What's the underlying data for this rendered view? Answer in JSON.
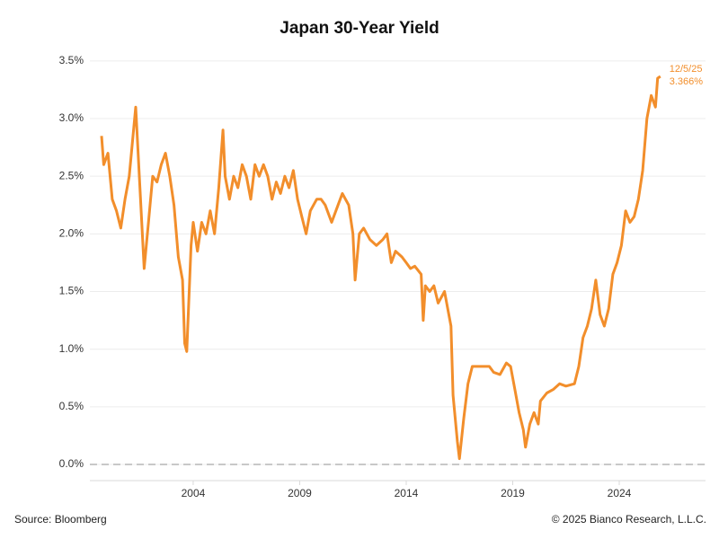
{
  "chart_data": {
    "type": "line",
    "title": "Japan 30-Year Yield",
    "source": "Source: Bloomberg",
    "copyright": "© 2025 Bianco Research, L.L.C.",
    "xlim": [
      1999.15,
      2028.05
    ],
    "xticks": [
      2004,
      2009,
      2014,
      2019,
      2024
    ],
    "ylim": [
      -0.14,
      3.6
    ],
    "yticks": [
      {
        "value": 0,
        "label": "0.0%"
      },
      {
        "value": 0.5,
        "label": "0.5%"
      },
      {
        "value": 1,
        "label": "1.0%"
      },
      {
        "value": 1.5,
        "label": "1.5%"
      },
      {
        "value": 2,
        "label": "2.0%"
      },
      {
        "value": 2.5,
        "label": "2.5%"
      },
      {
        "value": 3,
        "label": "3.0%"
      },
      {
        "value": 3.5,
        "label": "3.5%"
      }
    ],
    "grid": true,
    "zero_line": 0,
    "end_label": {
      "date": "12/5/25",
      "value": 3.366,
      "label": "3.366%"
    },
    "series": [
      {
        "color": "#f28e2b",
        "x": [
          1999.7,
          1999.8,
          2000.0,
          2000.2,
          2000.4,
          2000.6,
          2000.8,
          2001.0,
          2001.2,
          2001.3,
          2001.5,
          2001.7,
          2001.9,
          2002.1,
          2002.3,
          2002.5,
          2002.7,
          2002.9,
          2003.1,
          2003.3,
          2003.5,
          2003.6,
          2003.7,
          2003.9,
          2004.0,
          2004.2,
          2004.4,
          2004.6,
          2004.8,
          2005.0,
          2005.2,
          2005.4,
          2005.5,
          2005.7,
          2005.9,
          2006.1,
          2006.3,
          2006.5,
          2006.7,
          2006.9,
          2007.1,
          2007.3,
          2007.5,
          2007.7,
          2007.9,
          2008.1,
          2008.3,
          2008.5,
          2008.7,
          2008.9,
          2009.1,
          2009.3,
          2009.5,
          2009.8,
          2010.0,
          2010.2,
          2010.5,
          2010.8,
          2011.0,
          2011.3,
          2011.5,
          2011.6,
          2011.8,
          2012.0,
          2012.3,
          2012.6,
          2012.9,
          2013.1,
          2013.3,
          2013.5,
          2013.8,
          2014.0,
          2014.2,
          2014.4,
          2014.7,
          2014.8,
          2014.9,
          2015.1,
          2015.3,
          2015.5,
          2015.8,
          2016.0,
          2016.1,
          2016.2,
          2016.4,
          2016.5,
          2016.7,
          2016.9,
          2017.1,
          2017.3,
          2017.6,
          2017.9,
          2018.1,
          2018.4,
          2018.7,
          2018.9,
          2019.1,
          2019.3,
          2019.5,
          2019.6,
          2019.8,
          2020.0,
          2020.2,
          2020.3,
          2020.6,
          2020.9,
          2021.2,
          2021.5,
          2021.9,
          2022.1,
          2022.3,
          2022.5,
          2022.7,
          2022.9,
          2023.1,
          2023.3,
          2023.5,
          2023.7,
          2023.9,
          2024.1,
          2024.3,
          2024.5,
          2024.7,
          2024.9,
          2025.1,
          2025.3,
          2025.5,
          2025.7,
          2025.8,
          2025.93
        ],
        "values": [
          2.85,
          2.6,
          2.7,
          2.3,
          2.2,
          2.05,
          2.3,
          2.5,
          2.9,
          3.1,
          2.4,
          1.7,
          2.1,
          2.5,
          2.45,
          2.6,
          2.7,
          2.5,
          2.25,
          1.8,
          1.6,
          1.05,
          0.98,
          1.9,
          2.1,
          1.85,
          2.1,
          2.0,
          2.2,
          2.0,
          2.4,
          2.9,
          2.5,
          2.3,
          2.5,
          2.4,
          2.6,
          2.5,
          2.3,
          2.6,
          2.5,
          2.6,
          2.5,
          2.3,
          2.45,
          2.35,
          2.5,
          2.4,
          2.55,
          2.3,
          2.15,
          2.0,
          2.2,
          2.3,
          2.3,
          2.25,
          2.1,
          2.25,
          2.35,
          2.25,
          2.0,
          1.6,
          2.0,
          2.05,
          1.95,
          1.9,
          1.95,
          2.0,
          1.75,
          1.85,
          1.8,
          1.75,
          1.7,
          1.72,
          1.65,
          1.25,
          1.55,
          1.5,
          1.55,
          1.4,
          1.5,
          1.3,
          1.2,
          0.6,
          0.2,
          0.05,
          0.4,
          0.7,
          0.85,
          0.85,
          0.85,
          0.85,
          0.8,
          0.78,
          0.88,
          0.85,
          0.65,
          0.45,
          0.3,
          0.15,
          0.35,
          0.45,
          0.35,
          0.55,
          0.62,
          0.65,
          0.7,
          0.68,
          0.7,
          0.85,
          1.1,
          1.2,
          1.35,
          1.6,
          1.3,
          1.2,
          1.35,
          1.65,
          1.75,
          1.9,
          2.2,
          2.1,
          2.15,
          2.3,
          2.55,
          3.0,
          3.2,
          3.1,
          3.35,
          3.366
        ]
      }
    ]
  }
}
